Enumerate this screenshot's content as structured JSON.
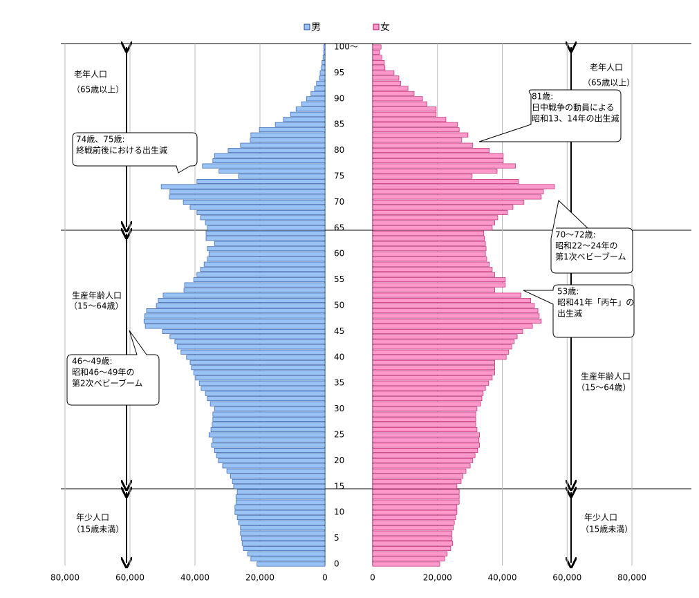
{
  "chart_data": [
    {
      "type": "bar",
      "orientation": "horizontal",
      "direction": "left",
      "categories": [
        "0",
        null,
        null,
        null,
        null,
        "5",
        null,
        null,
        null,
        null,
        "10",
        null,
        null,
        null,
        null,
        "15",
        null,
        null,
        null,
        null,
        "20",
        null,
        null,
        null,
        null,
        "25",
        null,
        null,
        null,
        null,
        "30",
        null,
        null,
        null,
        null,
        "35",
        null,
        null,
        null,
        null,
        "40",
        null,
        null,
        null,
        null,
        "45",
        null,
        null,
        null,
        null,
        "50",
        null,
        null,
        null,
        null,
        "55",
        null,
        null,
        null,
        null,
        "60",
        null,
        null,
        null,
        null,
        "65",
        null,
        null,
        null,
        null,
        "70",
        null,
        null,
        null,
        null,
        "75",
        null,
        null,
        null,
        null,
        "80",
        null,
        null,
        null,
        null,
        "85",
        null,
        null,
        null,
        null,
        "90",
        null,
        null,
        null,
        null,
        "95",
        null,
        null,
        null,
        null,
        "100～"
      ],
      "series": [
        {
          "name": "男",
          "color": "#99c3f5",
          "values": [
            20900,
            22800,
            23800,
            25100,
            25500,
            25700,
            26000,
            26000,
            26600,
            27000,
            27700,
            27700,
            27400,
            27400,
            27000,
            28100,
            28500,
            29100,
            30200,
            31500,
            32800,
            33400,
            34000,
            34900,
            34500,
            35700,
            35100,
            34700,
            34500,
            34500,
            34000,
            35300,
            36200,
            36800,
            38100,
            38700,
            39800,
            40400,
            41100,
            41500,
            42600,
            44300,
            45500,
            46200,
            47700,
            50000,
            55300,
            55700,
            55500,
            54900,
            51900,
            51300,
            49800,
            43400,
            43200,
            40400,
            39400,
            38300,
            37200,
            36200,
            35700,
            36200,
            34000,
            36600,
            36600,
            36200,
            36800,
            38300,
            39400,
            41500,
            43600,
            47900,
            47700,
            50400,
            39400,
            26600,
            32600,
            37700,
            34500,
            34000,
            29800,
            26000,
            23000,
            22800,
            20200,
            15300,
            12800,
            10600,
            8900,
            7200,
            5700,
            4300,
            3200,
            2600,
            1700,
            1500,
            1100,
            900,
            600,
            400,
            400
          ]
        }
      ],
      "xlim": [
        0,
        80000
      ],
      "xticks": [
        {
          "value": 80000,
          "label": "80,000"
        },
        {
          "value": 60000,
          "label": "60,000"
        },
        {
          "value": 40000,
          "label": "40,000"
        },
        {
          "value": 20000,
          "label": "20,000"
        },
        0
      ],
      "grid": true
    },
    {
      "type": "bar",
      "orientation": "horizontal",
      "direction": "right",
      "series": [
        {
          "name": "女",
          "color": "#ff99cc",
          "values": [
            20700,
            22200,
            23000,
            24100,
            24700,
            24500,
            24500,
            24900,
            25200,
            25600,
            26000,
            26000,
            26700,
            26700,
            26700,
            26000,
            27300,
            27900,
            28800,
            30100,
            30900,
            31600,
            32400,
            33000,
            32800,
            33000,
            32200,
            31800,
            31800,
            31800,
            32200,
            33300,
            33700,
            34100,
            34800,
            35800,
            36900,
            37700,
            37700,
            37700,
            41200,
            42000,
            42900,
            43700,
            44600,
            46300,
            49300,
            52000,
            51400,
            51000,
            49900,
            48800,
            45800,
            37700,
            40900,
            40900,
            37700,
            36900,
            36000,
            35200,
            34800,
            35000,
            34800,
            34500,
            34300,
            36900,
            37700,
            38600,
            41600,
            43300,
            46700,
            52000,
            52700,
            56100,
            45000,
            30700,
            38400,
            44100,
            40300,
            40300,
            36000,
            30900,
            27500,
            29400,
            26700,
            26200,
            22600,
            19600,
            19600,
            16800,
            15400,
            12800,
            10900,
            8700,
            8100,
            6600,
            3800,
            3600,
            2800,
            2100,
            2600
          ]
        }
      ],
      "xlim": [
        0,
        80000
      ],
      "xticks": [
        0,
        {
          "value": 20000,
          "label": "20,000"
        },
        {
          "value": 40000,
          "label": "40,000"
        },
        {
          "value": 60000,
          "label": "60,000"
        },
        {
          "value": 80000,
          "label": "80,000"
        }
      ],
      "grid": true
    }
  ],
  "age_groups": [
    {
      "label": "老年人口",
      "range": "（65歳以上）"
    },
    {
      "label": "生産年齢人口",
      "range": "（15～64歳）"
    },
    {
      "label": "年少人口",
      "range": "（15歳未満）"
    }
  ],
  "callouts": [
    {
      "lines": [
        "74歳、75歳:",
        "終戦前後における出生減"
      ]
    },
    {
      "lines": [
        "46～49歳:",
        "昭和46～49年の",
        "第2次ベビーブーム"
      ]
    },
    {
      "lines": [
        "81歳:",
        "日中戦争の動員による",
        "昭和13、14年の出生減"
      ]
    },
    {
      "lines": [
        "70～72歳:",
        "昭和22～24年の",
        "第1次ベビーブーム"
      ]
    },
    {
      "lines": [
        "53歳:",
        "昭和41年「丙午」の",
        "出生減"
      ]
    }
  ]
}
